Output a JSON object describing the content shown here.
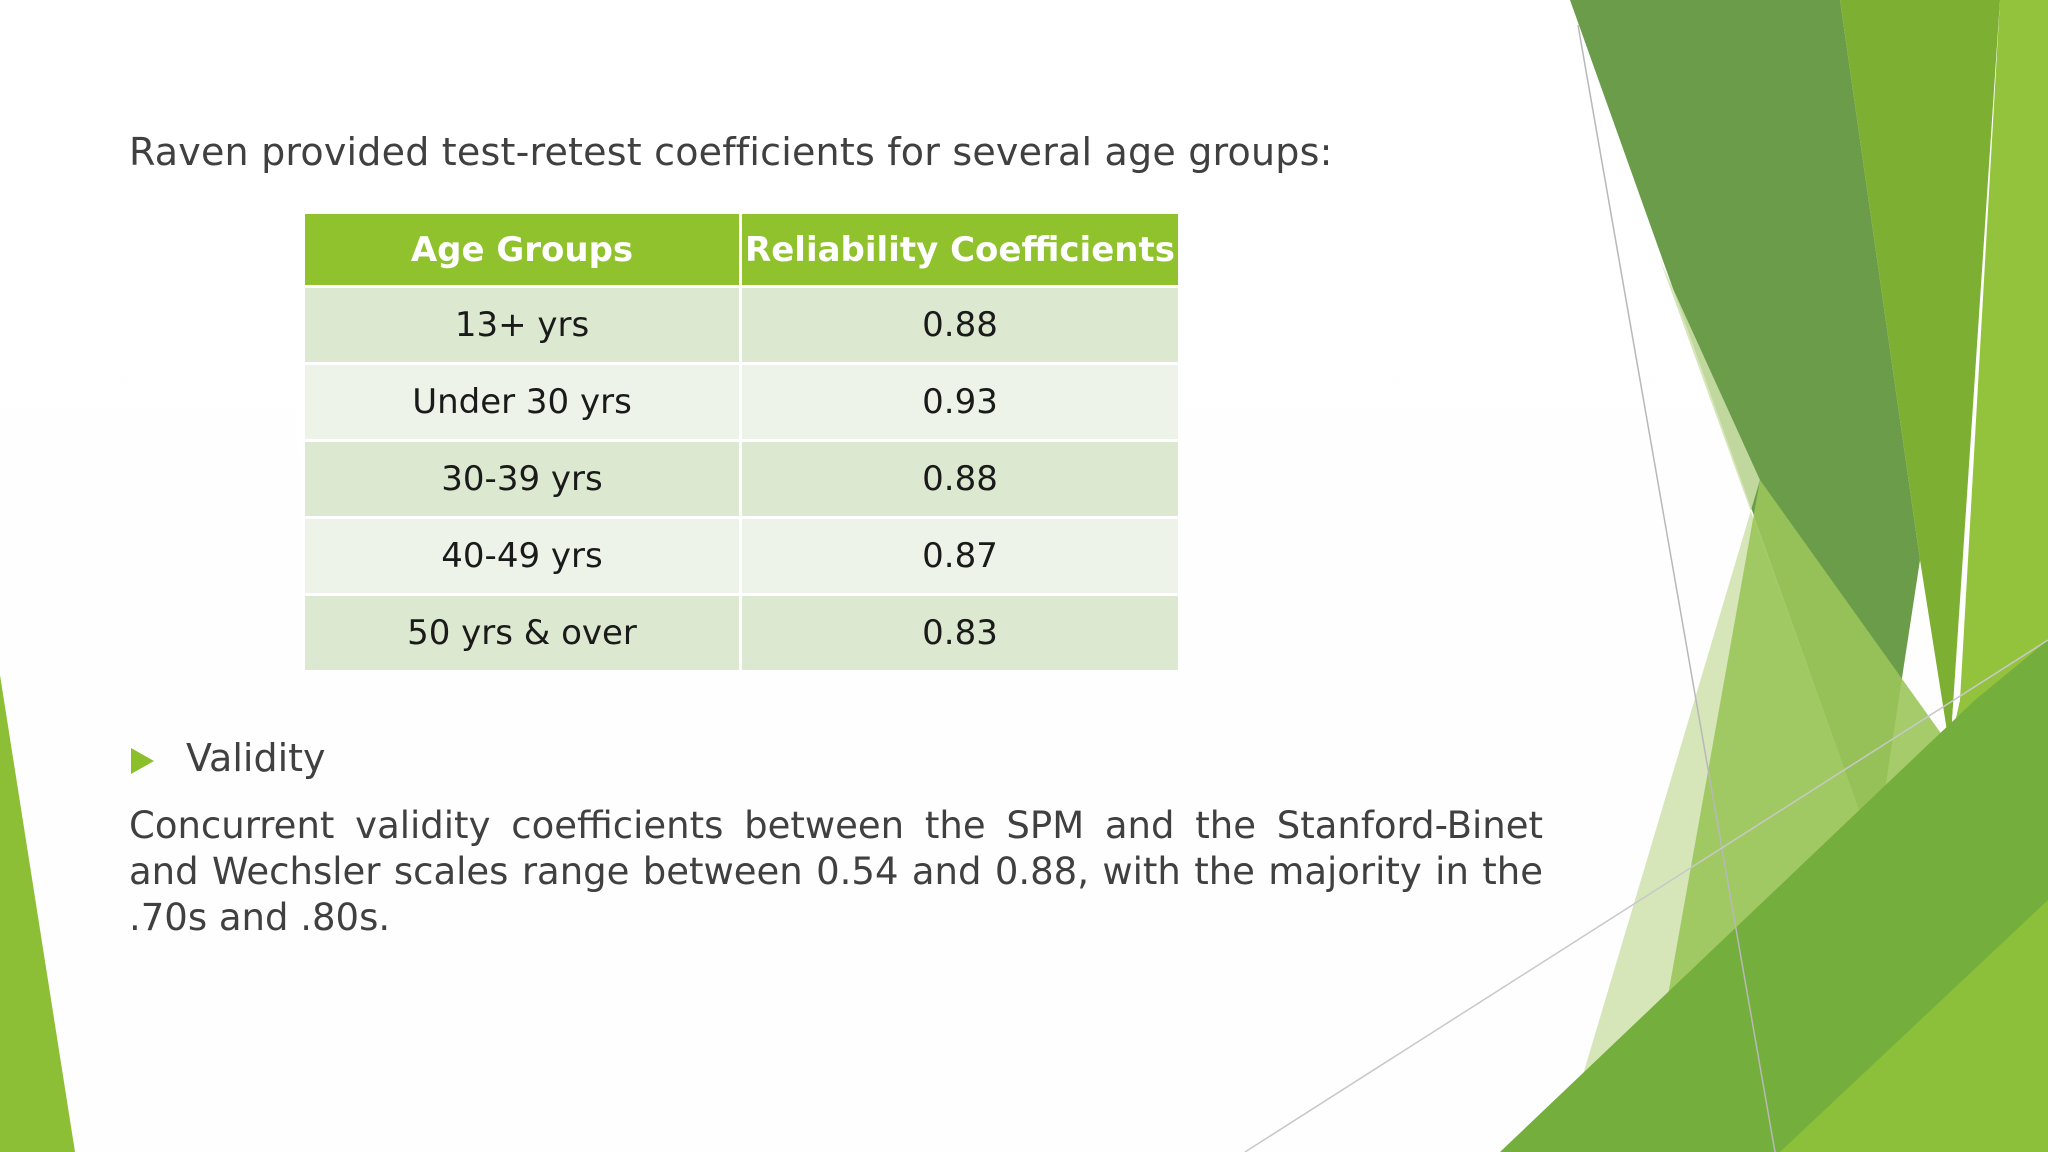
{
  "intro": "Raven provided test-retest coefficients for several age groups:",
  "table": {
    "headers": [
      "Age Groups",
      "Reliability Coefficients"
    ],
    "rows": [
      [
        "13+ yrs",
        "0.88"
      ],
      [
        "Under 30 yrs",
        "0.93"
      ],
      [
        "30-39 yrs",
        "0.88"
      ],
      [
        "40-49 yrs",
        "0.87"
      ],
      [
        "50 yrs & over",
        "0.83"
      ]
    ]
  },
  "bullet": {
    "label": "Validity",
    "icon": "triangle-bullet-icon"
  },
  "paragraph": "Concurrent validity coefficients between the SPM and the Stanford-Binet and Wechsler scales range between 0.54 and 0.88, with the majority in the .70s and .80s.",
  "colors": {
    "accent_green": "#8fc22c",
    "dark_green": "#5e8f3a",
    "row_odd": "#dce8cf",
    "row_even": "#edf3e8",
    "text": "#404040"
  }
}
